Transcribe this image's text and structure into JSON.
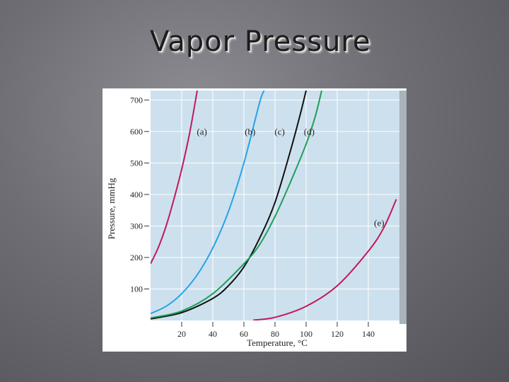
{
  "slide": {
    "title": "Vapor Pressure"
  },
  "chart_data": {
    "type": "line",
    "xlabel": "Temperature, °C",
    "ylabel": "Pressure, mmHg",
    "xlim": [
      0,
      160
    ],
    "ylim": [
      0,
      730
    ],
    "xticks": [
      20,
      40,
      60,
      80,
      100,
      120,
      140
    ],
    "yticks": [
      100,
      200,
      300,
      400,
      500,
      600,
      700
    ],
    "grid": true,
    "series": [
      {
        "name": "(a)",
        "color": "#c2185b",
        "points": [
          [
            0,
            180
          ],
          [
            5,
            232
          ],
          [
            10,
            300
          ],
          [
            15,
            385
          ],
          [
            20,
            480
          ],
          [
            25,
            592
          ],
          [
            30,
            730
          ]
        ]
      },
      {
        "name": "(b)",
        "color": "#29a3e3",
        "points": [
          [
            0,
            22
          ],
          [
            10,
            45
          ],
          [
            20,
            85
          ],
          [
            30,
            145
          ],
          [
            40,
            230
          ],
          [
            50,
            345
          ],
          [
            60,
            500
          ],
          [
            70,
            690
          ],
          [
            73,
            730
          ]
        ]
      },
      {
        "name": "(c)",
        "color": "#111111",
        "points": [
          [
            0,
            5
          ],
          [
            20,
            25
          ],
          [
            40,
            70
          ],
          [
            50,
            110
          ],
          [
            60,
            170
          ],
          [
            70,
            260
          ],
          [
            80,
            375
          ],
          [
            90,
            540
          ],
          [
            96,
            650
          ],
          [
            100,
            730
          ]
        ]
      },
      {
        "name": "(d)",
        "color": "#1e9e5a",
        "points": [
          [
            0,
            8
          ],
          [
            20,
            30
          ],
          [
            40,
            85
          ],
          [
            60,
            180
          ],
          [
            70,
            240
          ],
          [
            80,
            330
          ],
          [
            90,
            440
          ],
          [
            100,
            560
          ],
          [
            106,
            650
          ],
          [
            110,
            730
          ]
        ]
      },
      {
        "name": "(e)",
        "color": "#c2185b",
        "points": [
          [
            66,
            1
          ],
          [
            80,
            10
          ],
          [
            100,
            45
          ],
          [
            120,
            110
          ],
          [
            140,
            220
          ],
          [
            150,
            295
          ],
          [
            158,
            385
          ]
        ]
      }
    ],
    "labels": [
      {
        "text": "(a)",
        "x": 33,
        "y": 590
      },
      {
        "text": "(b)",
        "x": 64,
        "y": 590
      },
      {
        "text": "(c)",
        "x": 83,
        "y": 590
      },
      {
        "text": "(d)",
        "x": 102,
        "y": 590
      },
      {
        "text": "(e)",
        "x": 147,
        "y": 300
      }
    ]
  }
}
